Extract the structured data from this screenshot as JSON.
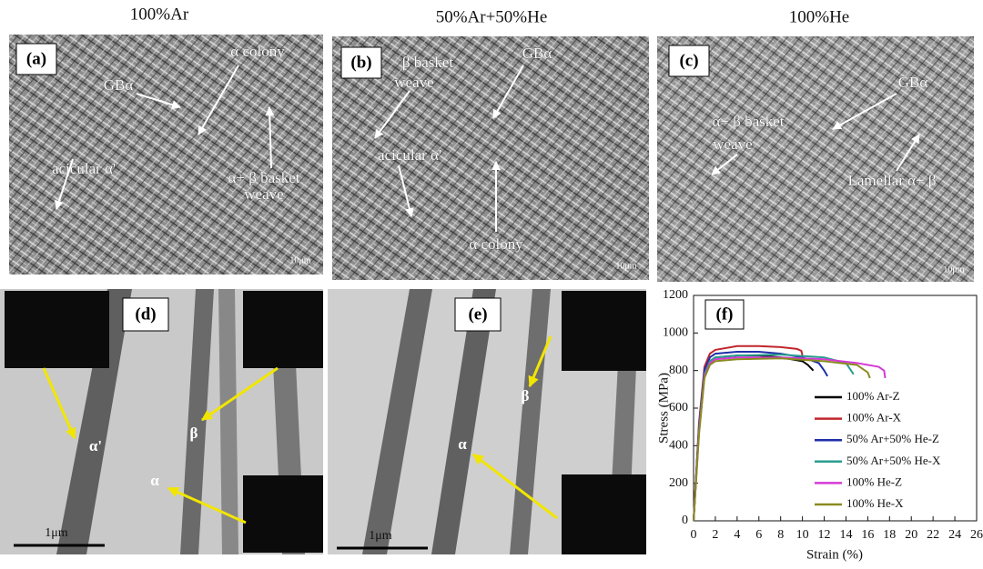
{
  "panels": [
    {
      "header": "100%Ar",
      "label": "(a)",
      "annotations": [
        "α colony",
        "GBα",
        "acicular α'",
        "α+ β basket",
        "weave"
      ],
      "scale_bar": "10μm"
    },
    {
      "header": "50%Ar+50%He",
      "label": "(b)",
      "annotations": [
        "β basket",
        "weave",
        "GBα",
        "acicular α'",
        "α colony"
      ],
      "scale_bar": "10μm"
    },
    {
      "header": "100%He",
      "label": "(c)",
      "annotations": [
        "α+ β basket",
        "weave",
        "GBα",
        "Lamellar α+ β"
      ],
      "scale_bar": "10μm"
    },
    {
      "label": "(d)",
      "annotations": [
        "α'",
        "β",
        "α"
      ],
      "scale_bar": "1μm"
    },
    {
      "label": "(e)",
      "annotations": [
        "β",
        "α"
      ],
      "scale_bar": "1μm"
    }
  ],
  "chart_data": {
    "type": "line",
    "panel_label": "(f)",
    "x_label": "Strain (%)",
    "y_label": "Stress (MPa)",
    "xlim": [
      0,
      26
    ],
    "xticks": [
      0,
      2,
      4,
      6,
      8,
      10,
      12,
      14,
      16,
      18,
      20,
      22,
      24,
      26
    ],
    "ylim": [
      0,
      1200
    ],
    "yticks": [
      0,
      200,
      400,
      600,
      800,
      1000,
      1200
    ],
    "grid": false,
    "series": [
      {
        "name": "100% Ar-Z",
        "color": "#000000",
        "x": [
          0,
          0.5,
          1,
          1.5,
          2,
          4,
          6,
          8,
          10,
          10.5,
          11
        ],
        "values": [
          0,
          500,
          780,
          850,
          870,
          880,
          880,
          870,
          850,
          830,
          800
        ]
      },
      {
        "name": "100% Ar-X",
        "color": "#c0272d",
        "x": [
          0,
          0.5,
          1,
          1.5,
          2,
          4,
          6,
          8,
          9.5,
          9.9,
          10
        ],
        "values": [
          0,
          520,
          820,
          890,
          910,
          930,
          930,
          925,
          915,
          905,
          880
        ]
      },
      {
        "name": "50% Ar+50% He-Z",
        "color": "#1f2fa8",
        "x": [
          0,
          0.5,
          1,
          1.5,
          2,
          4,
          6,
          8,
          10,
          11.5,
          12,
          12.3
        ],
        "values": [
          0,
          500,
          800,
          870,
          890,
          900,
          900,
          890,
          870,
          840,
          800,
          770
        ]
      },
      {
        "name": "50% Ar+50% He-X",
        "color": "#2a9d8f",
        "x": [
          0,
          0.5,
          1,
          1.5,
          2,
          4,
          8,
          12,
          14,
          14.7
        ],
        "values": [
          0,
          480,
          780,
          850,
          870,
          880,
          885,
          870,
          840,
          780
        ]
      },
      {
        "name": "100% He-Z",
        "color": "#d63ad6",
        "x": [
          0,
          0.5,
          1,
          1.5,
          2,
          4,
          8,
          12,
          15,
          17,
          17.5,
          17.6
        ],
        "values": [
          0,
          470,
          770,
          840,
          860,
          870,
          870,
          860,
          840,
          820,
          800,
          760
        ]
      },
      {
        "name": "100% He-X",
        "color": "#8a8a1e",
        "x": [
          0,
          0.5,
          1,
          1.5,
          2,
          4,
          8,
          12,
          15,
          16,
          16.2
        ],
        "values": [
          0,
          460,
          760,
          830,
          850,
          860,
          865,
          850,
          830,
          790,
          760
        ]
      }
    ]
  }
}
